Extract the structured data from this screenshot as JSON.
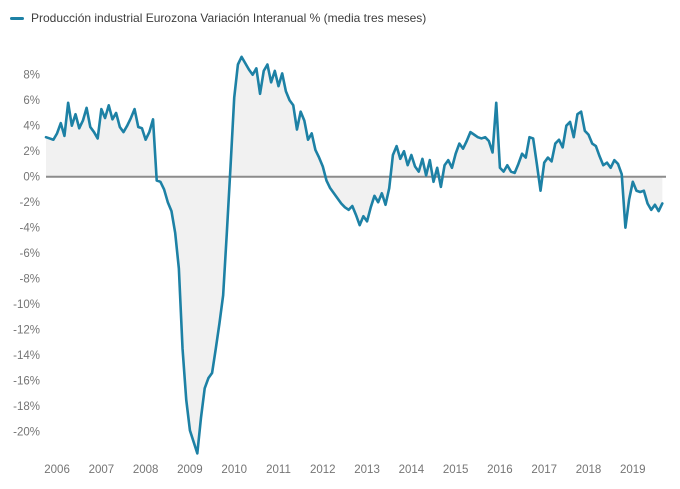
{
  "legend": {
    "label": "Producción industrial Eurozona Variación Interanual % (media tres meses)"
  },
  "colors": {
    "line": "#1d81a5",
    "area_fill": "#f1f1f1",
    "zero_axis": "#8c8c8c",
    "tick_text": "#757575",
    "legend_text": "#3d3d3d",
    "background": "#ffffff"
  },
  "chart_data": {
    "type": "line",
    "title": "Producción industrial Eurozona Variación Interanual % (media tres meses)",
    "unit": "%",
    "frequency": "monthly",
    "x_start": "2005-10",
    "x_end": "2019-09",
    "xlabel": "",
    "ylabel": "",
    "ylim": [
      -22,
      10
    ],
    "grid": false,
    "legend_position": "top-left",
    "baseline": 0,
    "fill_between_line_and_baseline": true,
    "y_ticks": [
      8,
      6,
      4,
      2,
      0,
      -2,
      -4,
      -6,
      -8,
      -10,
      -12,
      -14,
      -16,
      -18,
      -20
    ],
    "x_tick_years": [
      "2006",
      "2007",
      "2008",
      "2009",
      "2010",
      "2011",
      "2012",
      "2013",
      "2014",
      "2015",
      "2016",
      "2017",
      "2018",
      "2019"
    ],
    "series": [
      {
        "name": "Producción industrial Eurozona Variación Interanual % (media tres meses)",
        "color": "#1d81a5",
        "fill": "#f1f1f1",
        "values": [
          3.1,
          3.0,
          2.9,
          3.4,
          4.2,
          3.2,
          5.8,
          4.0,
          4.9,
          3.8,
          4.4,
          5.4,
          3.9,
          3.5,
          3.0,
          5.3,
          4.6,
          5.6,
          4.5,
          5.0,
          3.9,
          3.5,
          4.0,
          4.6,
          5.3,
          3.9,
          3.8,
          2.9,
          3.5,
          4.5,
          -0.3,
          -0.4,
          -1.0,
          -2.0,
          -2.7,
          -4.4,
          -7.2,
          -13.5,
          -17.5,
          -19.9,
          -20.8,
          -21.7,
          -18.9,
          -16.6,
          -15.8,
          -15.4,
          -13.5,
          -11.5,
          -9.3,
          -4.4,
          0.8,
          6.2,
          8.8,
          9.4,
          8.9,
          8.4,
          8.0,
          8.5,
          6.5,
          8.3,
          8.8,
          7.4,
          8.3,
          7.1,
          8.1,
          6.7,
          6.0,
          5.6,
          3.7,
          5.1,
          4.4,
          2.9,
          3.4,
          2.1,
          1.5,
          0.8,
          -0.3,
          -0.9,
          -1.3,
          -1.7,
          -2.1,
          -2.4,
          -2.6,
          -2.3,
          -3.0,
          -3.8,
          -3.1,
          -3.5,
          -2.4,
          -1.5,
          -2.0,
          -1.3,
          -2.2,
          -0.9,
          1.7,
          2.4,
          1.4,
          2.0,
          0.9,
          1.7,
          0.8,
          0.4,
          1.4,
          0.1,
          1.3,
          -0.4,
          0.7,
          -0.8,
          0.9,
          1.3,
          0.7,
          1.8,
          2.6,
          2.2,
          2.8,
          3.5,
          3.3,
          3.1,
          3.0,
          3.1,
          2.8,
          1.9,
          5.8,
          0.7,
          0.4,
          0.9,
          0.4,
          0.3,
          1.0,
          1.8,
          1.5,
          3.1,
          3.0,
          1.0,
          -1.1,
          1.1,
          1.5,
          1.2,
          2.6,
          2.9,
          2.3,
          4.0,
          4.3,
          3.1,
          4.9,
          5.1,
          3.6,
          3.3,
          2.6,
          2.4,
          1.6,
          0.9,
          1.1,
          0.7,
          1.3,
          1.0,
          0.2,
          -4.0,
          -1.8,
          -0.4,
          -1.1,
          -1.2,
          -1.1,
          -2.1,
          -2.6,
          -2.2,
          -2.7,
          -2.1
        ]
      }
    ]
  }
}
